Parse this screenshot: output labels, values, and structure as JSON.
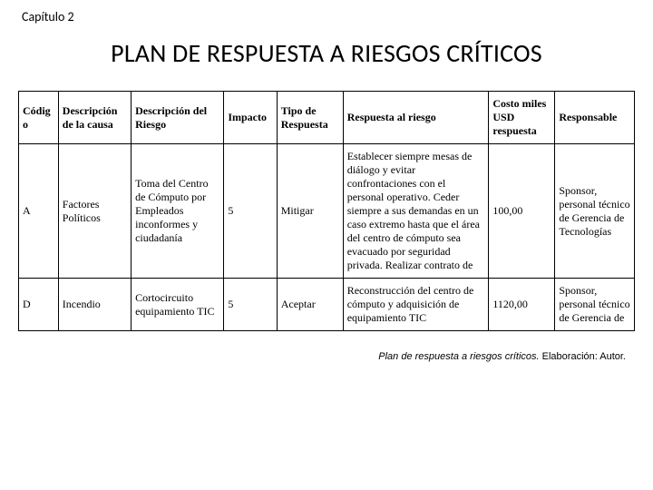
{
  "chapter": "Capítulo 2",
  "title": "PLAN DE RESPUESTA A RIESGOS CRÍTICOS",
  "caption_italic": "Plan de respuesta a riesgos críticos.",
  "caption_plain": " Elaboración: Autor.",
  "table": {
    "columns": [
      {
        "label": "Código",
        "width_pct": 6
      },
      {
        "label": "Descripción de la causa",
        "width_pct": 11
      },
      {
        "label": "Descripción del Riesgo",
        "width_pct": 14
      },
      {
        "label": "Impacto",
        "width_pct": 8
      },
      {
        "label": "Tipo de Respuesta",
        "width_pct": 10
      },
      {
        "label": "Respuesta al riesgo",
        "width_pct": 22
      },
      {
        "label": "Costo miles USD respuesta",
        "width_pct": 10
      },
      {
        "label": "Responsable",
        "width_pct": 12
      }
    ],
    "rows": [
      {
        "codigo": "A",
        "causa": "Factores Políticos",
        "riesgo": "Toma del Centro de Cómputo por Empleados inconformes y ciudadanía",
        "impacto": "5",
        "tipo": "Mitigar",
        "respuesta": "Establecer siempre mesas de diálogo y evitar confrontaciones con el personal operativo. Ceder siempre a sus demandas en un caso extremo hasta que el área del centro de cómputo sea evacuado por seguridad privada. Realizar contrato de",
        "costo": "100,00",
        "responsable": "Sponsor, personal técnico de Gerencia de Tecnologías"
      },
      {
        "codigo": "D",
        "causa": "Incendio",
        "riesgo": "Cortocircuito equipamiento TIC",
        "impacto": "5",
        "tipo": "Aceptar",
        "respuesta": "Reconstrucción del centro de cómputo y adquisición de equipamiento TIC",
        "costo": "1120,00",
        "responsable": "Sponsor, personal técnico de Gerencia de"
      }
    ]
  }
}
